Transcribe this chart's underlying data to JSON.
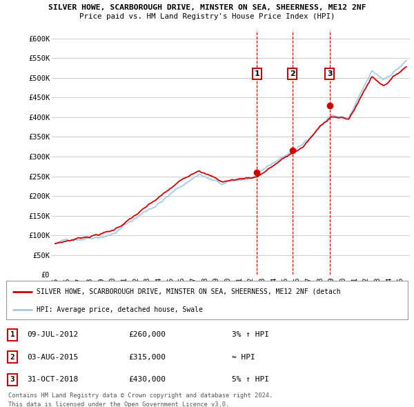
{
  "title1": "SILVER HOWE, SCARBOROUGH DRIVE, MINSTER ON SEA, SHEERNESS, ME12 2NF",
  "title2": "Price paid vs. HM Land Registry's House Price Index (HPI)",
  "ylim": [
    0,
    620000
  ],
  "yticks": [
    0,
    50000,
    100000,
    150000,
    200000,
    250000,
    300000,
    350000,
    400000,
    450000,
    500000,
    550000,
    600000
  ],
  "ytick_labels": [
    "£0",
    "£50K",
    "£100K",
    "£150K",
    "£200K",
    "£250K",
    "£300K",
    "£350K",
    "£400K",
    "£450K",
    "£500K",
    "£550K",
    "£600K"
  ],
  "xlim_start": 1994.7,
  "xlim_end": 2025.8,
  "xticks": [
    1995,
    1996,
    1997,
    1998,
    1999,
    2000,
    2001,
    2002,
    2003,
    2004,
    2005,
    2006,
    2007,
    2008,
    2009,
    2010,
    2011,
    2012,
    2013,
    2014,
    2015,
    2016,
    2017,
    2018,
    2019,
    2020,
    2021,
    2022,
    2023,
    2024,
    2025
  ],
  "sale1_x": 2012.52,
  "sale1_y": 260000,
  "sale1_label": "1",
  "sale2_x": 2015.59,
  "sale2_y": 315000,
  "sale2_label": "2",
  "sale3_x": 2018.83,
  "sale3_y": 430000,
  "sale3_label": "3",
  "sale_color": "#cc0000",
  "hpi_color": "#a8c8e8",
  "vline_color": "#cc0000",
  "grid_color": "#cccccc",
  "bg_color": "#ffffff",
  "legend1_text": "SILVER HOWE, SCARBOROUGH DRIVE, MINSTER ON SEA, SHEERNESS, ME12 2NF (detach",
  "legend2_text": "HPI: Average price, detached house, Swale",
  "table_rows": [
    [
      "1",
      "09-JUL-2012",
      "£260,000",
      "3% ↑ HPI"
    ],
    [
      "2",
      "03-AUG-2015",
      "£315,000",
      "≈ HPI"
    ],
    [
      "3",
      "31-OCT-2018",
      "£430,000",
      "5% ↑ HPI"
    ]
  ],
  "footnote1": "Contains HM Land Registry data © Crown copyright and database right 2024.",
  "footnote2": "This data is licensed under the Open Government Licence v3.0."
}
